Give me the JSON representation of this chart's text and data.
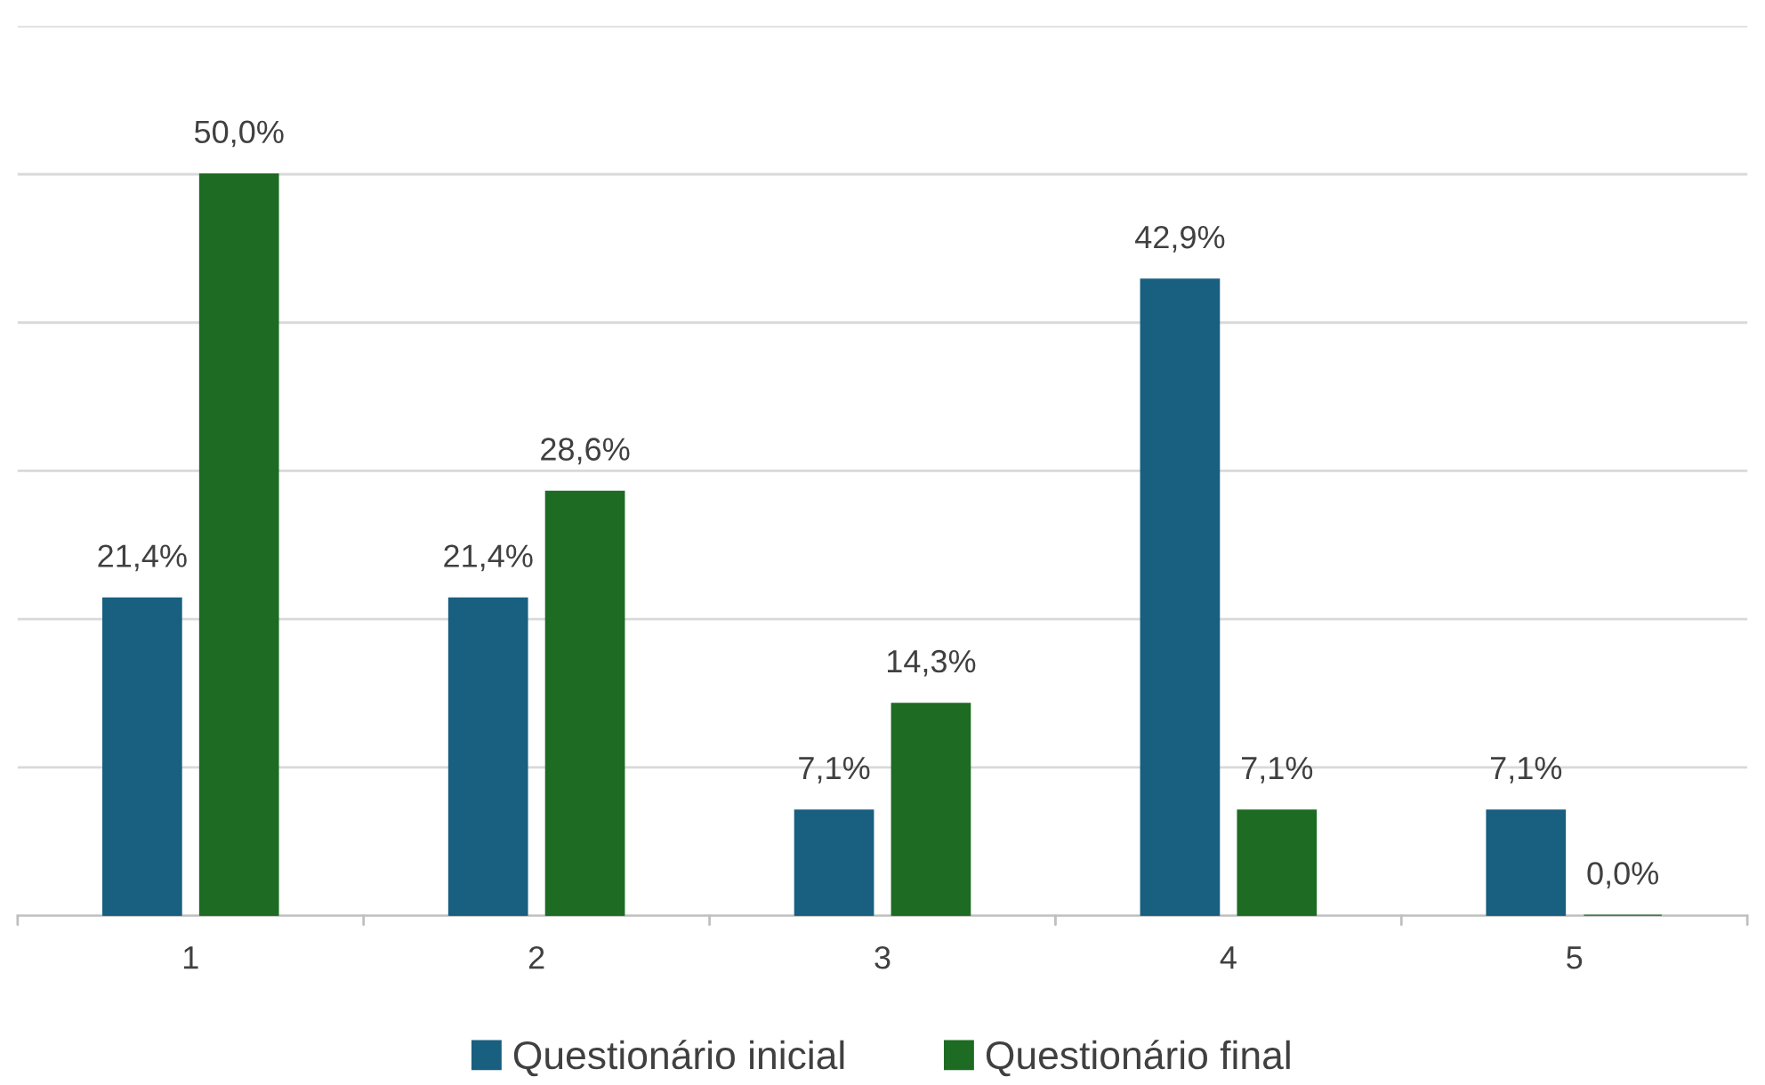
{
  "chart_data": {
    "type": "bar",
    "categories": [
      "1",
      "2",
      "3",
      "4",
      "5"
    ],
    "series": [
      {
        "name": "Questionário inicial",
        "color": "#185f80",
        "values": [
          21.4,
          21.4,
          7.1,
          42.9,
          7.1
        ],
        "value_labels": [
          "21,4%",
          "21,4%",
          "7,1%",
          "42,9%",
          "7,1%"
        ]
      },
      {
        "name": "Questionário final",
        "color": "#1e6b23",
        "values": [
          50.0,
          28.6,
          14.3,
          7.1,
          0.0
        ],
        "value_labels": [
          "50,0%",
          "28,6%",
          "14,3%",
          "7,1%",
          "0,0%"
        ]
      }
    ],
    "ylim": [
      0,
      60
    ],
    "yticks": [
      {
        "value": 0,
        "label": null
      },
      {
        "value": 10,
        "label": null
      },
      {
        "value": 20,
        "label": null
      },
      {
        "value": 30,
        "label": null
      },
      {
        "value": 40,
        "label": null
      },
      {
        "value": 50,
        "label": null
      },
      {
        "value": 60,
        "label": null
      }
    ],
    "tick_labels": "x",
    "grid": "y",
    "legend": "bottom"
  }
}
